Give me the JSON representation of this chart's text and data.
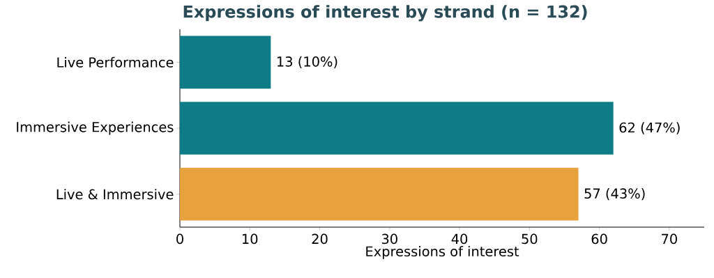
{
  "chart_data": {
    "type": "bar",
    "orientation": "horizontal",
    "title": "Expressions of interest by strand (n = 132)",
    "xlabel": "Expressions of interest",
    "categories": [
      "Live Performance",
      "Immersive Experiences",
      "Live & Immersive"
    ],
    "values": [
      13,
      62,
      57
    ],
    "colors": [
      "#0e7c86",
      "#0e7c86",
      "#e8a23d"
    ],
    "value_labels": [
      "13  (10%)",
      "62  (47%)",
      "57  (43%)"
    ],
    "xlim": [
      0,
      75
    ],
    "xticks": [
      0,
      10,
      20,
      30,
      40,
      50,
      60,
      70
    ],
    "grid": false
  }
}
